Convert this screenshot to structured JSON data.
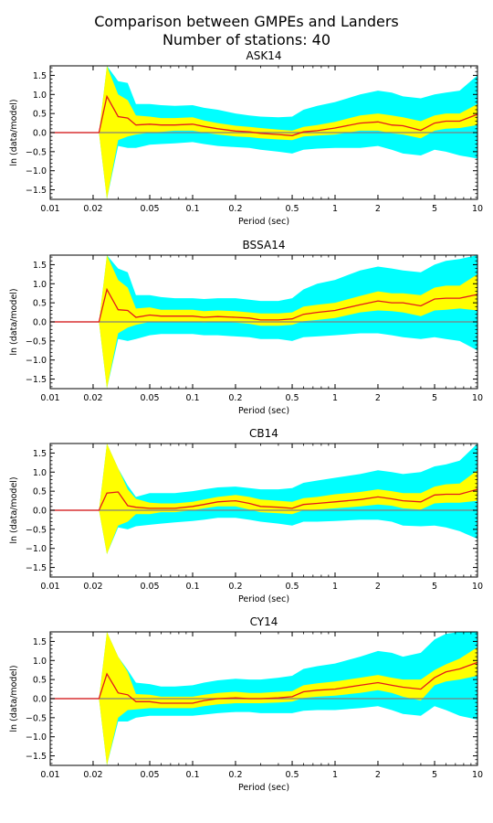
{
  "figure": {
    "title_line1": "Comparison between GMPEs and Landers",
    "title_line2": "Number of stations: 40"
  },
  "colors": {
    "mean_line": "#e41a1c",
    "inner_band": "#ffff00",
    "outer_band": "#00ffff",
    "zero_line": "#808080"
  },
  "chart_data": [
    {
      "type": "area",
      "title": "ASK14",
      "xlabel": "Period (sec)",
      "ylabel": "ln (data/model)",
      "xscale": "log",
      "xlim": [
        0.01,
        10
      ],
      "ylim": [
        -1.75,
        1.75
      ],
      "xticks": [
        0.01,
        0.02,
        0.05,
        0.1,
        0.2,
        0.5,
        1,
        2,
        5,
        10
      ],
      "xtick_labels": [
        "0.01",
        "0.02",
        "0.05",
        "0.1",
        "0.2",
        "0.5",
        "1",
        "2",
        "5",
        "10"
      ],
      "yticks": [
        -1.5,
        -1.0,
        -0.5,
        0.0,
        0.5,
        1.0,
        1.5
      ],
      "ytick_labels": [
        "−1.5",
        "−1.0",
        "−0.5",
        "0.0",
        "0.5",
        "1.0",
        "1.5"
      ],
      "grid": false,
      "x": [
        0.01,
        0.022,
        0.025,
        0.03,
        0.035,
        0.04,
        0.05,
        0.06,
        0.075,
        0.1,
        0.12,
        0.15,
        0.2,
        0.25,
        0.3,
        0.4,
        0.5,
        0.6,
        0.75,
        1,
        1.5,
        2,
        2.5,
        3,
        4,
        5,
        6,
        7.5,
        10
      ],
      "series": [
        {
          "role": "mean",
          "values": [
            0,
            0,
            0.95,
            0.42,
            0.38,
            0.2,
            0.22,
            0.2,
            0.2,
            0.22,
            0.16,
            0.1,
            0.04,
            0.02,
            -0.02,
            -0.05,
            -0.08,
            0.02,
            0.05,
            0.12,
            0.25,
            0.28,
            0.2,
            0.18,
            0.06,
            0.25,
            0.3,
            0.3,
            0.48
          ]
        },
        {
          "role": "band-inner",
          "lower": [
            0,
            0,
            -1.75,
            -0.2,
            -0.1,
            -0.05,
            0.0,
            0.02,
            0.05,
            0.05,
            0.0,
            -0.05,
            -0.1,
            -0.12,
            -0.15,
            -0.18,
            -0.2,
            -0.1,
            -0.08,
            -0.05,
            0.05,
            0.05,
            -0.02,
            -0.05,
            -0.15,
            0.05,
            0.1,
            0.12,
            0.2
          ],
          "upper": [
            0,
            0,
            1.75,
            1.0,
            0.85,
            0.45,
            0.42,
            0.38,
            0.38,
            0.4,
            0.32,
            0.25,
            0.18,
            0.15,
            0.12,
            0.08,
            0.05,
            0.15,
            0.2,
            0.28,
            0.45,
            0.5,
            0.45,
            0.4,
            0.3,
            0.45,
            0.5,
            0.5,
            0.75
          ]
        },
        {
          "role": "band-outer",
          "lower": [
            0,
            0,
            -1.75,
            -0.35,
            -0.4,
            -0.4,
            -0.32,
            -0.3,
            -0.28,
            -0.25,
            -0.3,
            -0.35,
            -0.38,
            -0.4,
            -0.45,
            -0.5,
            -0.55,
            -0.45,
            -0.42,
            -0.4,
            -0.4,
            -0.35,
            -0.45,
            -0.55,
            -0.6,
            -0.45,
            -0.5,
            -0.6,
            -0.68
          ],
          "upper": [
            0,
            0,
            1.75,
            1.35,
            1.3,
            0.75,
            0.75,
            0.72,
            0.7,
            0.72,
            0.65,
            0.6,
            0.5,
            0.45,
            0.42,
            0.4,
            0.42,
            0.6,
            0.7,
            0.8,
            1.0,
            1.1,
            1.05,
            0.95,
            0.9,
            1.0,
            1.05,
            1.1,
            1.5
          ]
        }
      ]
    },
    {
      "type": "area",
      "title": "BSSA14",
      "xlabel": "Period (sec)",
      "ylabel": "ln (data/model)",
      "xscale": "log",
      "xlim": [
        0.01,
        10
      ],
      "ylim": [
        -1.75,
        1.75
      ],
      "xticks": [
        0.01,
        0.02,
        0.05,
        0.1,
        0.2,
        0.5,
        1,
        2,
        5,
        10
      ],
      "xtick_labels": [
        "0.01",
        "0.02",
        "0.05",
        "0.1",
        "0.2",
        "0.5",
        "1",
        "2",
        "5",
        "10"
      ],
      "yticks": [
        -1.5,
        -1.0,
        -0.5,
        0.0,
        0.5,
        1.0,
        1.5
      ],
      "ytick_labels": [
        "−1.5",
        "−1.0",
        "−0.5",
        "0.0",
        "0.5",
        "1.0",
        "1.5"
      ],
      "grid": false,
      "x": [
        0.01,
        0.022,
        0.025,
        0.03,
        0.035,
        0.04,
        0.05,
        0.06,
        0.075,
        0.1,
        0.12,
        0.15,
        0.2,
        0.25,
        0.3,
        0.4,
        0.5,
        0.6,
        0.75,
        1,
        1.5,
        2,
        2.5,
        3,
        4,
        5,
        6,
        7.5,
        10
      ],
      "series": [
        {
          "role": "mean",
          "values": [
            0,
            0,
            0.85,
            0.32,
            0.3,
            0.12,
            0.18,
            0.15,
            0.15,
            0.15,
            0.12,
            0.14,
            0.12,
            0.1,
            0.05,
            0.05,
            0.08,
            0.2,
            0.25,
            0.3,
            0.45,
            0.55,
            0.5,
            0.5,
            0.42,
            0.6,
            0.62,
            0.62,
            0.72
          ]
        },
        {
          "role": "band-inner",
          "lower": [
            0,
            0,
            -1.75,
            -0.3,
            -0.15,
            -0.08,
            0.0,
            0.0,
            0.0,
            0.0,
            -0.02,
            0.0,
            -0.02,
            -0.05,
            -0.1,
            -0.1,
            -0.08,
            0.02,
            0.05,
            0.1,
            0.25,
            0.3,
            0.28,
            0.25,
            0.15,
            0.3,
            0.32,
            0.35,
            0.3
          ]
        },
        {
          "role": "band-inner-upper",
          "upper": [
            0,
            0,
            1.75,
            1.1,
            0.9,
            0.35,
            0.38,
            0.32,
            0.32,
            0.32,
            0.28,
            0.3,
            0.28,
            0.25,
            0.22,
            0.22,
            0.25,
            0.4,
            0.45,
            0.5,
            0.68,
            0.8,
            0.75,
            0.75,
            0.7,
            0.9,
            0.95,
            0.95,
            1.25
          ]
        },
        {
          "role": "band-outer",
          "lower": [
            0,
            0,
            -1.75,
            -0.45,
            -0.5,
            -0.45,
            -0.35,
            -0.32,
            -0.32,
            -0.32,
            -0.35,
            -0.35,
            -0.38,
            -0.4,
            -0.45,
            -0.45,
            -0.5,
            -0.4,
            -0.38,
            -0.35,
            -0.3,
            -0.3,
            -0.35,
            -0.4,
            -0.45,
            -0.4,
            -0.45,
            -0.5,
            -0.75
          ],
          "upper": [
            0,
            0,
            1.75,
            1.4,
            1.3,
            0.7,
            0.7,
            0.65,
            0.62,
            0.62,
            0.6,
            0.62,
            0.62,
            0.58,
            0.55,
            0.55,
            0.62,
            0.85,
            1.0,
            1.1,
            1.35,
            1.45,
            1.4,
            1.35,
            1.3,
            1.5,
            1.6,
            1.65,
            1.75
          ]
        }
      ]
    },
    {
      "type": "area",
      "title": "CB14",
      "xlabel": "Period (sec)",
      "ylabel": "ln (data/model)",
      "xscale": "log",
      "xlim": [
        0.01,
        10
      ],
      "ylim": [
        -1.75,
        1.75
      ],
      "xticks": [
        0.01,
        0.02,
        0.05,
        0.1,
        0.2,
        0.5,
        1,
        2,
        5,
        10
      ],
      "xtick_labels": [
        "0.01",
        "0.02",
        "0.05",
        "0.1",
        "0.2",
        "0.5",
        "1",
        "2",
        "5",
        "10"
      ],
      "yticks": [
        -1.5,
        -1.0,
        -0.5,
        0.0,
        0.5,
        1.0,
        1.5
      ],
      "ytick_labels": [
        "−1.5",
        "−1.0",
        "−0.5",
        "0.0",
        "0.5",
        "1.0",
        "1.5"
      ],
      "grid": false,
      "x": [
        0.01,
        0.022,
        0.025,
        0.03,
        0.035,
        0.04,
        0.05,
        0.06,
        0.075,
        0.1,
        0.12,
        0.15,
        0.2,
        0.25,
        0.3,
        0.4,
        0.5,
        0.6,
        0.75,
        1,
        1.5,
        2,
        2.5,
        3,
        4,
        5,
        6,
        7.5,
        10
      ],
      "series": [
        {
          "role": "mean",
          "values": [
            0,
            0,
            0.45,
            0.48,
            0.12,
            0.08,
            0.05,
            0.05,
            0.05,
            0.1,
            0.15,
            0.22,
            0.25,
            0.18,
            0.1,
            0.08,
            0.05,
            0.15,
            0.18,
            0.22,
            0.28,
            0.35,
            0.3,
            0.25,
            0.22,
            0.4,
            0.42,
            0.42,
            0.55
          ]
        },
        {
          "role": "band-inner",
          "lower": [
            0,
            0,
            -1.15,
            -0.4,
            -0.3,
            -0.1,
            -0.1,
            -0.05,
            -0.05,
            0.0,
            0.05,
            0.1,
            0.1,
            0.02,
            -0.05,
            -0.08,
            -0.1,
            0.0,
            0.02,
            0.05,
            0.1,
            0.15,
            0.12,
            0.05,
            0.02,
            0.18,
            0.2,
            0.2,
            0.25
          ],
          "upper": [
            0,
            0,
            1.75,
            1.1,
            0.55,
            0.3,
            0.2,
            0.18,
            0.18,
            0.22,
            0.28,
            0.35,
            0.4,
            0.35,
            0.28,
            0.25,
            0.22,
            0.32,
            0.35,
            0.42,
            0.48,
            0.55,
            0.5,
            0.45,
            0.45,
            0.62,
            0.68,
            0.7,
            1.05
          ]
        },
        {
          "role": "band-outer",
          "lower": [
            0,
            0,
            -1.15,
            -0.45,
            -0.5,
            -0.42,
            -0.38,
            -0.35,
            -0.32,
            -0.28,
            -0.25,
            -0.2,
            -0.2,
            -0.25,
            -0.3,
            -0.35,
            -0.4,
            -0.3,
            -0.3,
            -0.28,
            -0.25,
            -0.25,
            -0.3,
            -0.4,
            -0.42,
            -0.4,
            -0.45,
            -0.55,
            -0.75
          ],
          "upper": [
            0,
            0,
            1.75,
            1.1,
            0.65,
            0.35,
            0.45,
            0.45,
            0.45,
            0.5,
            0.55,
            0.6,
            0.62,
            0.58,
            0.55,
            0.55,
            0.58,
            0.72,
            0.78,
            0.85,
            0.95,
            1.05,
            1.0,
            0.95,
            1.0,
            1.15,
            1.2,
            1.3,
            1.75
          ]
        }
      ]
    },
    {
      "type": "area",
      "title": "CY14",
      "xlabel": "Period (sec)",
      "ylabel": "ln (data/model)",
      "xscale": "log",
      "xlim": [
        0.01,
        10
      ],
      "ylim": [
        -1.75,
        1.75
      ],
      "xticks": [
        0.01,
        0.02,
        0.05,
        0.1,
        0.2,
        0.5,
        1,
        2,
        5,
        10
      ],
      "xtick_labels": [
        "0.01",
        "0.02",
        "0.05",
        "0.1",
        "0.2",
        "0.5",
        "1",
        "2",
        "5",
        "10"
      ],
      "yticks": [
        -1.5,
        -1.0,
        -0.5,
        0.0,
        0.5,
        1.0,
        1.5
      ],
      "ytick_labels": [
        "−1.5",
        "−1.0",
        "−0.5",
        "0.0",
        "0.5",
        "1.0",
        "1.5"
      ],
      "grid": false,
      "x": [
        0.01,
        0.022,
        0.025,
        0.03,
        0.035,
        0.04,
        0.05,
        0.06,
        0.075,
        0.1,
        0.12,
        0.15,
        0.2,
        0.25,
        0.3,
        0.4,
        0.5,
        0.6,
        0.75,
        1,
        1.5,
        2,
        2.5,
        3,
        4,
        5,
        6,
        7.5,
        10
      ],
      "series": [
        {
          "role": "mean",
          "values": [
            0,
            0,
            0.65,
            0.15,
            0.1,
            -0.08,
            -0.08,
            -0.12,
            -0.12,
            -0.12,
            -0.05,
            0.0,
            0.02,
            0.0,
            0.0,
            0.02,
            0.05,
            0.18,
            0.22,
            0.25,
            0.35,
            0.42,
            0.35,
            0.3,
            0.25,
            0.55,
            0.7,
            0.78,
            0.95
          ]
        },
        {
          "role": "band-inner",
          "lower": [
            0,
            0,
            -1.75,
            -0.5,
            -0.3,
            -0.28,
            -0.25,
            -0.25,
            -0.25,
            -0.25,
            -0.2,
            -0.15,
            -0.12,
            -0.12,
            -0.12,
            -0.1,
            -0.08,
            0.02,
            0.05,
            0.08,
            0.15,
            0.22,
            0.15,
            0.05,
            -0.05,
            0.35,
            0.45,
            0.5,
            0.6
          ],
          "upper": [
            0,
            0,
            1.75,
            1.1,
            0.7,
            0.12,
            0.1,
            0.05,
            0.05,
            0.05,
            0.1,
            0.15,
            0.18,
            0.15,
            0.15,
            0.18,
            0.2,
            0.35,
            0.4,
            0.45,
            0.55,
            0.62,
            0.55,
            0.5,
            0.5,
            0.75,
            0.9,
            1.05,
            1.35
          ]
        },
        {
          "role": "band-outer",
          "lower": [
            0,
            0,
            -1.75,
            -0.6,
            -0.6,
            -0.5,
            -0.45,
            -0.45,
            -0.45,
            -0.45,
            -0.42,
            -0.38,
            -0.35,
            -0.35,
            -0.38,
            -0.38,
            -0.38,
            -0.32,
            -0.3,
            -0.3,
            -0.25,
            -0.2,
            -0.3,
            -0.4,
            -0.45,
            -0.2,
            -0.3,
            -0.45,
            -0.55
          ],
          "upper": [
            0,
            0,
            1.75,
            1.1,
            0.75,
            0.42,
            0.38,
            0.32,
            0.32,
            0.35,
            0.42,
            0.48,
            0.52,
            0.5,
            0.5,
            0.55,
            0.6,
            0.78,
            0.85,
            0.92,
            1.1,
            1.25,
            1.2,
            1.1,
            1.2,
            1.55,
            1.7,
            1.75,
            1.75
          ]
        }
      ]
    }
  ]
}
